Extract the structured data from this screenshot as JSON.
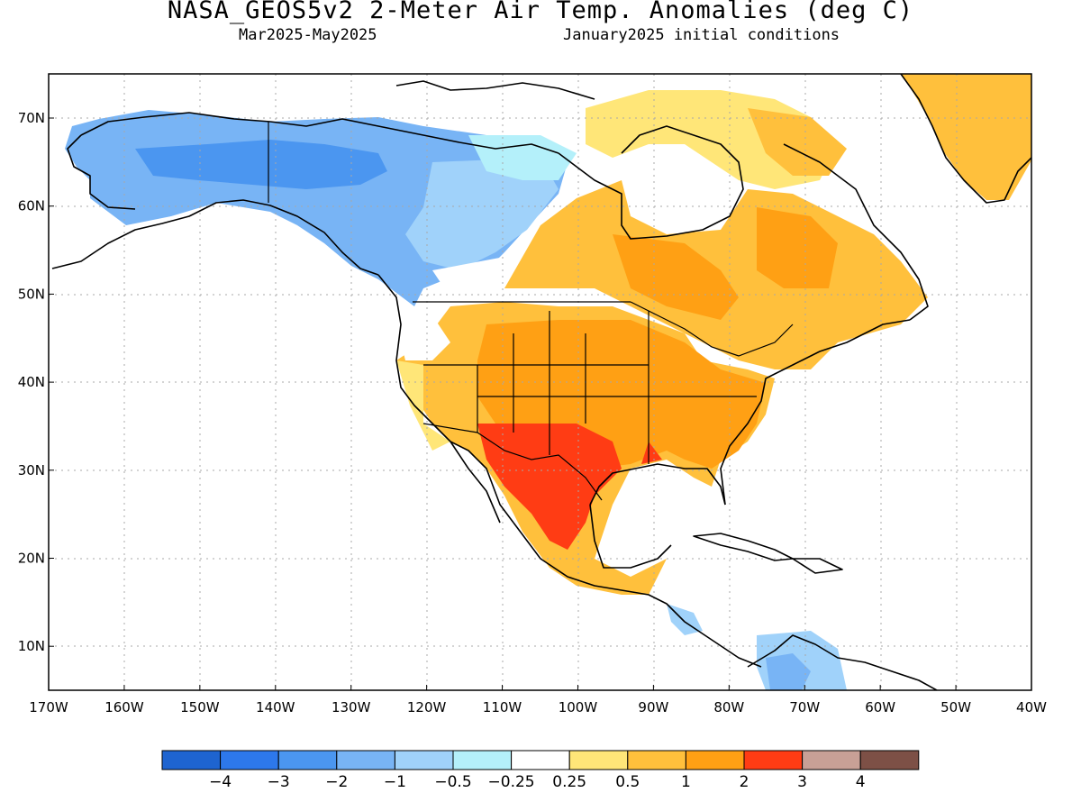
{
  "header": {
    "title": "NASA_GEOS5v2 2-Meter Air Temp. Anomalies (deg C)",
    "period": "Mar2025-May2025",
    "init": "January2025 initial conditions"
  },
  "map": {
    "lat_labels": [
      "70N",
      "60N",
      "50N",
      "40N",
      "30N",
      "20N",
      "10N"
    ],
    "lon_labels": [
      "170W",
      "160W",
      "150W",
      "140W",
      "130W",
      "120W",
      "110W",
      "100W",
      "90W",
      "80W",
      "70W",
      "60W",
      "50W",
      "40W"
    ]
  },
  "colorbar": {
    "colors": [
      "#1e64d0",
      "#2d78eb",
      "#4b96f0",
      "#78b4f5",
      "#a0d2fa",
      "#b4f0fa",
      "#ffffff",
      "#ffe678",
      "#ffc03c",
      "#ffa014",
      "#ff3c14",
      "#c8a096",
      "#7d5046"
    ],
    "labels": [
      "-4",
      "-3",
      "-2",
      "-1",
      "-0.5",
      "-0.25",
      "0.25",
      "0.5",
      "1",
      "2",
      "3",
      "4"
    ]
  }
}
